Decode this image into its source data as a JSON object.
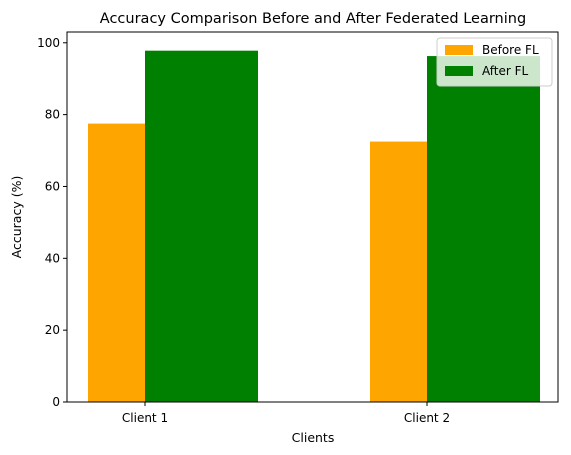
{
  "chart_data": {
    "type": "bar",
    "title": "Accuracy Comparison Before and After Federated Learning",
    "xlabel": "Clients",
    "ylabel": "Accuracy (%)",
    "categories": [
      "Client 1",
      "Client 2"
    ],
    "series": [
      {
        "name": "Before FL",
        "values": [
          77.5,
          72.5
        ],
        "color": "#ffa500"
      },
      {
        "name": "After FL",
        "values": [
          97.8,
          96.3
        ],
        "color": "#008000"
      }
    ],
    "ylim": [
      0,
      103
    ],
    "yticks": [
      0,
      20,
      40,
      60,
      80,
      100
    ],
    "legend_position": "top-right",
    "grid": false
  }
}
